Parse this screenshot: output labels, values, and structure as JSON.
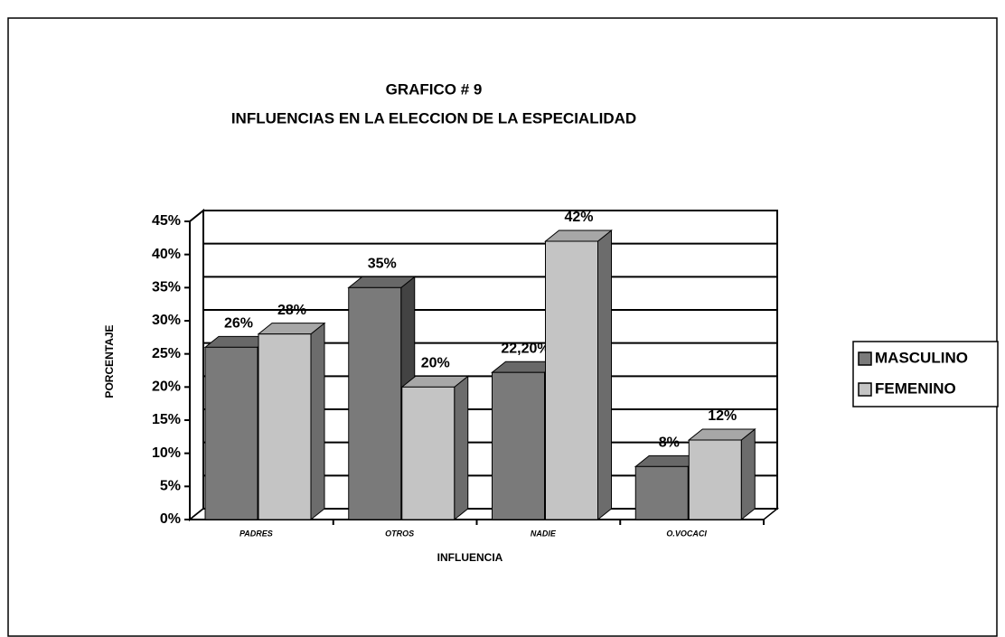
{
  "chart_data": {
    "type": "bar3d",
    "title": "GRAFICO # 9",
    "subtitle": "INFLUENCIAS EN LA ELECCION DE LA ESPECIALIDAD",
    "x_label": "INFLUENCIA",
    "y_label": "PORCENTAJE",
    "categories": [
      "PADRES",
      "OTROS",
      "NADIE",
      "O.VOCACI"
    ],
    "series": [
      {
        "name": "MASCULINO",
        "color": "#7a7a7a",
        "values": [
          26,
          35,
          22.2,
          8
        ],
        "value_labels": [
          "26%",
          "35%",
          "22,20%",
          "8%"
        ]
      },
      {
        "name": "FEMENINO",
        "color": "#c4c4c4",
        "values": [
          28,
          20,
          42,
          12
        ],
        "value_labels": [
          "28%",
          "20%",
          "42%",
          "12%"
        ]
      }
    ],
    "ylim": [
      0,
      45
    ],
    "yticks": [
      {
        "value": 0,
        "label": "0%"
      },
      {
        "value": 5,
        "label": "5%"
      },
      {
        "value": 10,
        "label": "10%"
      },
      {
        "value": 15,
        "label": "15%"
      },
      {
        "value": 20,
        "label": "20%"
      },
      {
        "value": 25,
        "label": "25%"
      },
      {
        "value": 30,
        "label": "30%"
      },
      {
        "value": 35,
        "label": "35%"
      },
      {
        "value": 40,
        "label": "40%"
      },
      {
        "value": 45,
        "label": "45%"
      }
    ],
    "grid": true,
    "legend": "right"
  }
}
